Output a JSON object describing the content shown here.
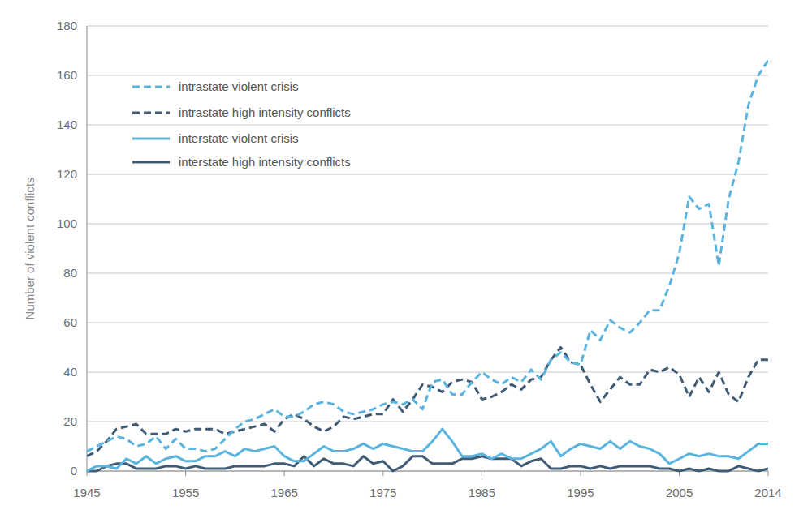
{
  "chart_data": {
    "type": "line",
    "y_label": "Number of violent conflicts",
    "x": [
      1945,
      1946,
      1947,
      1948,
      1949,
      1950,
      1951,
      1952,
      1953,
      1954,
      1955,
      1956,
      1957,
      1958,
      1959,
      1960,
      1961,
      1962,
      1963,
      1964,
      1965,
      1966,
      1967,
      1968,
      1969,
      1970,
      1971,
      1972,
      1973,
      1974,
      1975,
      1976,
      1977,
      1978,
      1979,
      1980,
      1981,
      1982,
      1983,
      1984,
      1985,
      1986,
      1987,
      1988,
      1989,
      1990,
      1991,
      1992,
      1993,
      1994,
      1995,
      1996,
      1997,
      1998,
      1999,
      2000,
      2001,
      2002,
      2003,
      2004,
      2005,
      2006,
      2007,
      2008,
      2009,
      2010,
      2011,
      2012,
      2013,
      2014
    ],
    "xlim": [
      1945,
      2014
    ],
    "xticks": [
      1945,
      1955,
      1965,
      1975,
      1985,
      1995,
      2005,
      2014
    ],
    "ylim": [
      0,
      180
    ],
    "yticks": [
      0,
      20,
      40,
      60,
      80,
      100,
      120,
      140,
      160,
      180
    ],
    "grid": true,
    "legend": "upper left",
    "series": [
      {
        "name": "intrastate violent crisis",
        "color": "#5ab4de",
        "line_style": "dashed",
        "values": [
          8,
          10,
          12,
          14,
          13,
          10,
          11,
          14,
          9,
          13,
          9,
          9,
          8,
          9,
          13,
          17,
          20,
          21,
          23,
          25,
          22,
          22,
          24,
          27,
          28,
          27,
          24,
          23,
          24,
          25,
          27,
          28,
          27,
          29,
          25,
          36,
          37,
          31,
          31,
          36,
          40,
          37,
          35,
          38,
          36,
          41,
          37,
          45,
          48,
          44,
          43,
          57,
          53,
          61,
          58,
          56,
          60,
          65,
          65,
          75,
          88,
          111,
          106,
          108,
          83,
          110,
          125,
          148,
          160,
          166
        ]
      },
      {
        "name": "intrastate high intensity conflicts",
        "color": "#3f5b76",
        "line_style": "dashed",
        "values": [
          6,
          8,
          12,
          17,
          18,
          19,
          15,
          15,
          15,
          17,
          16,
          17,
          17,
          17,
          15,
          16,
          17,
          18,
          19,
          16,
          21,
          23,
          21,
          18,
          16,
          18,
          22,
          21,
          22,
          23,
          23,
          29,
          24,
          29,
          35,
          34,
          32,
          36,
          37,
          36,
          29,
          30,
          32,
          35,
          33,
          37,
          38,
          45,
          50,
          44,
          43,
          35,
          28,
          33,
          38,
          35,
          35,
          41,
          40,
          42,
          39,
          30,
          38,
          32,
          40,
          31,
          28,
          38,
          45,
          45
        ]
      },
      {
        "name": "interstate violent crisis",
        "color": "#5ab4de",
        "line_style": "solid",
        "values": [
          0,
          2,
          2,
          1,
          5,
          3,
          6,
          3,
          5,
          6,
          4,
          4,
          6,
          6,
          8,
          6,
          9,
          8,
          9,
          10,
          6,
          4,
          4,
          7,
          10,
          8,
          8,
          9,
          11,
          9,
          11,
          10,
          9,
          8,
          8,
          12,
          17,
          12,
          6,
          6,
          7,
          5,
          7,
          5,
          5,
          7,
          9,
          12,
          6,
          9,
          11,
          10,
          9,
          12,
          9,
          12,
          10,
          9,
          7,
          3,
          5,
          7,
          6,
          7,
          6,
          6,
          5,
          8,
          11,
          11
        ]
      },
      {
        "name": "interstate high intensity conflicts",
        "color": "#3f5b76",
        "line_style": "solid",
        "values": [
          0,
          0,
          2,
          3,
          3,
          1,
          1,
          1,
          2,
          2,
          1,
          2,
          1,
          1,
          1,
          2,
          2,
          2,
          2,
          3,
          3,
          2,
          6,
          2,
          5,
          3,
          3,
          2,
          6,
          3,
          4,
          0,
          2,
          6,
          6,
          3,
          3,
          3,
          5,
          5,
          6,
          5,
          5,
          5,
          2,
          4,
          5,
          1,
          1,
          2,
          2,
          1,
          2,
          1,
          2,
          2,
          2,
          2,
          1,
          1,
          0,
          1,
          0,
          1,
          0,
          0,
          2,
          1,
          0,
          1
        ]
      }
    ]
  }
}
